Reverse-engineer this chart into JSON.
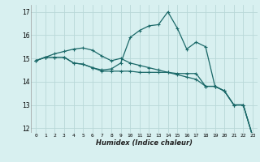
{
  "xlabel": "Humidex (Indice chaleur)",
  "background_color": "#d8f0f0",
  "grid_color": "#b8d8d8",
  "line_color": "#1a6868",
  "xlim": [
    -0.5,
    23.5
  ],
  "ylim": [
    11.8,
    17.3
  ],
  "xticks": [
    0,
    1,
    2,
    3,
    4,
    5,
    6,
    7,
    8,
    9,
    10,
    11,
    12,
    13,
    14,
    15,
    16,
    17,
    18,
    19,
    20,
    21,
    22,
    23
  ],
  "yticks": [
    12,
    13,
    14,
    15,
    16,
    17
  ],
  "line1_x": [
    0,
    1,
    2,
    3,
    4,
    5,
    6,
    7,
    8,
    9,
    10,
    11,
    12,
    13,
    14,
    15,
    16,
    17,
    18,
    19,
    20,
    21,
    22,
    23
  ],
  "line1_y": [
    14.9,
    15.05,
    15.05,
    15.05,
    14.8,
    14.75,
    14.6,
    14.5,
    14.55,
    14.8,
    15.9,
    16.2,
    16.4,
    16.45,
    17.0,
    16.3,
    15.4,
    15.7,
    15.5,
    13.8,
    13.6,
    13.0,
    13.0,
    11.65
  ],
  "line2_x": [
    0,
    1,
    2,
    3,
    4,
    5,
    6,
    7,
    8,
    9,
    10,
    11,
    12,
    13,
    14,
    15,
    16,
    17,
    18,
    19,
    20,
    21,
    22,
    23
  ],
  "line2_y": [
    14.9,
    15.05,
    15.05,
    15.05,
    14.8,
    14.75,
    14.6,
    14.45,
    14.45,
    14.45,
    14.45,
    14.4,
    14.4,
    14.4,
    14.4,
    14.35,
    14.35,
    14.35,
    13.8,
    13.8,
    13.6,
    13.0,
    13.0,
    11.65
  ],
  "line3_x": [
    0,
    1,
    2,
    3,
    4,
    5,
    6,
    7,
    8,
    9,
    10,
    11,
    12,
    13,
    14,
    15,
    16,
    17,
    18,
    19,
    20,
    21,
    22,
    23
  ],
  "line3_y": [
    14.9,
    15.05,
    15.2,
    15.3,
    15.4,
    15.45,
    15.35,
    15.1,
    14.9,
    15.0,
    14.8,
    14.7,
    14.6,
    14.5,
    14.4,
    14.3,
    14.2,
    14.1,
    13.8,
    13.8,
    13.6,
    13.0,
    13.0,
    11.65
  ]
}
